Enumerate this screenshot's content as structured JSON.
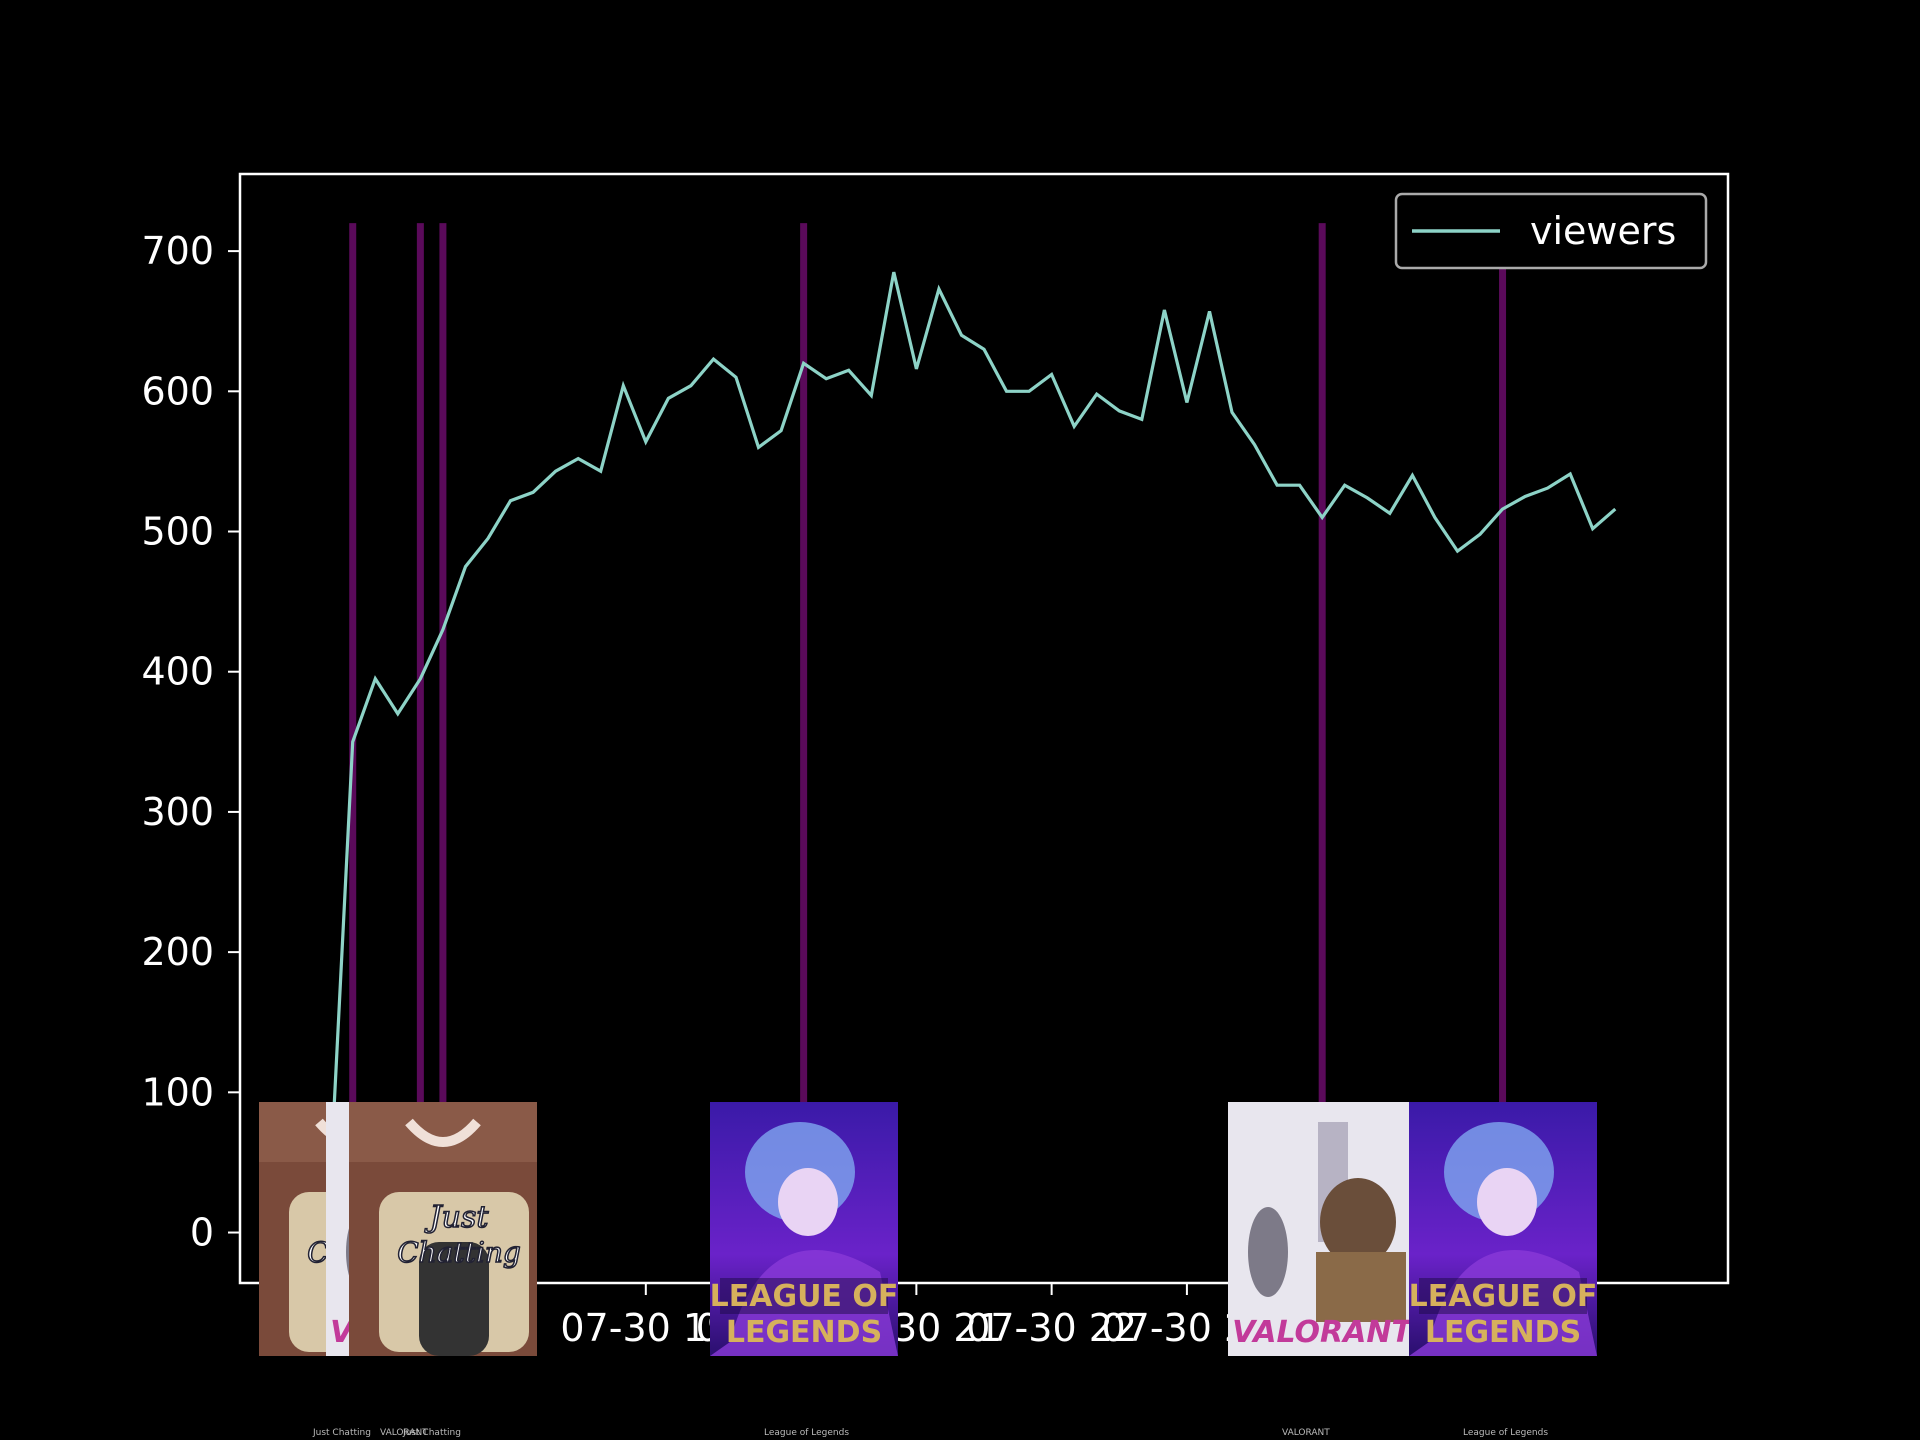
{
  "chart_data": {
    "type": "line",
    "series": [
      {
        "name": "viewers",
        "color": "#8dd3c7",
        "x": [
          "07-30 16:40",
          "07-30 16:50",
          "07-30 17:00",
          "07-30 17:10",
          "07-30 17:20",
          "07-30 17:30",
          "07-30 17:40",
          "07-30 17:50",
          "07-30 18:00",
          "07-30 18:10",
          "07-30 18:20",
          "07-30 18:30",
          "07-30 18:40",
          "07-30 18:50",
          "07-30 19:00",
          "07-30 19:10",
          "07-30 19:20",
          "07-30 19:30",
          "07-30 19:40",
          "07-30 19:50",
          "07-30 20:00",
          "07-30 20:10",
          "07-30 20:20",
          "07-30 20:30",
          "07-30 20:40",
          "07-30 20:50",
          "07-30 21:00",
          "07-30 21:10",
          "07-30 21:20",
          "07-30 21:30",
          "07-30 21:40",
          "07-30 21:50",
          "07-30 22:00",
          "07-30 22:10",
          "07-30 22:20",
          "07-30 22:30",
          "07-30 22:40",
          "07-30 22:50",
          "07-30 23:00",
          "07-30 23:10",
          "07-30 23:20",
          "07-30 23:30",
          "07-30 23:40",
          "07-30 23:50",
          "07-31 00:00",
          "07-31 00:10",
          "07-31 00:20",
          "07-31 00:30",
          "07-31 00:40",
          "07-31 00:50",
          "07-31 01:00",
          "07-31 01:10",
          "07-31 01:20",
          "07-31 01:30",
          "07-31 01:40",
          "07-31 01:50",
          "07-31 02:00",
          "07-31 02:10",
          "07-31 02:20"
        ],
        "values": [
          35,
          350,
          395,
          370,
          395,
          430,
          475,
          495,
          522,
          528,
          543,
          552,
          543,
          604,
          564,
          595,
          604,
          623,
          610,
          560,
          572,
          620,
          609,
          615,
          597,
          685,
          616,
          673,
          640,
          630,
          600,
          600,
          612,
          575,
          598,
          586,
          580,
          658,
          592,
          657,
          585,
          562,
          533,
          533,
          510,
          533,
          524,
          513,
          540,
          510,
          486,
          498,
          516,
          525,
          531,
          541,
          502,
          516,
          null
        ]
      }
    ],
    "category_changes": [
      {
        "time": "07-30 16:50",
        "category": "Just Chatting",
        "label": "Just Chatting",
        "thumb": "just-chatting-thumbnail"
      },
      {
        "time": "07-30 17:20",
        "category": "VALORANT",
        "label": "VALORANT",
        "thumb": "valorant-thumbnail"
      },
      {
        "time": "07-30 17:30",
        "category": "Just Chatting",
        "label": "Just Chatting",
        "thumb": "just-chatting-thumbnail"
      },
      {
        "time": "07-30 20:10",
        "category": "League of Legends",
        "label": "League of Legends",
        "thumb": "league-of-legends-thumbnail"
      },
      {
        "time": "07-31 00:00",
        "category": "VALORANT",
        "label": "VALORANT",
        "thumb": "valorant-thumbnail"
      },
      {
        "time": "07-31 01:20",
        "category": "League of Legends",
        "label": "League of Legends",
        "thumb": "league-of-legends-thumbnail"
      }
    ],
    "x_ticks": [
      {
        "time": "07-30 19:00",
        "label": "07-30 19"
      },
      {
        "time": "07-30 20:00",
        "label": "07-30 20"
      },
      {
        "time": "07-30 21:00",
        "label": "07-30 21"
      },
      {
        "time": "07-30 22:00",
        "label": "07-30 22"
      },
      {
        "time": "07-30 23:00",
        "label": "07-30 23"
      }
    ],
    "xlim": [
      "07-30 16:00",
      "07-31 03:00"
    ],
    "y_ticks": [
      0,
      100,
      200,
      300,
      400,
      500,
      600,
      700
    ],
    "ylim": [
      -36,
      755
    ],
    "legend": {
      "placement": "upper right",
      "entries": [
        "viewers"
      ]
    },
    "category_line_color": "#5a0a5a",
    "background": "#000000",
    "foreground": "#ffffff",
    "grid": false,
    "title": "",
    "xlabel": "",
    "ylabel": ""
  }
}
